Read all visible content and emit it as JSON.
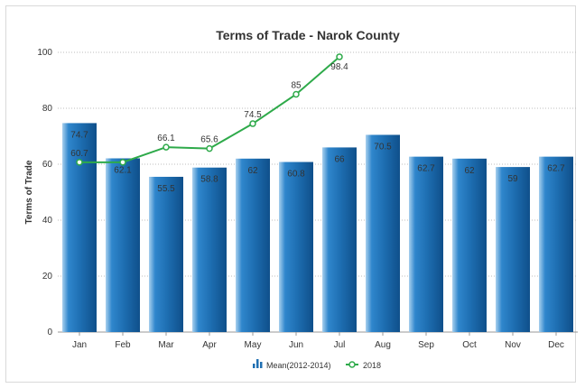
{
  "chart_data": {
    "type": "bar",
    "title": "Terms of Trade - Narok County",
    "ylabel": "Terms of Trade",
    "xlabel": "",
    "ylim": [
      0,
      100
    ],
    "yticks": [
      0,
      20,
      40,
      60,
      80,
      100
    ],
    "grid": true,
    "legend_position": "bottom-center",
    "categories": [
      "Jan",
      "Feb",
      "Mar",
      "Apr",
      "May",
      "Jun",
      "Jul",
      "Aug",
      "Sep",
      "Oct",
      "Nov",
      "Dec"
    ],
    "series": [
      {
        "name": "Mean(2012-2014)",
        "kind": "bar",
        "color": "#1f6fb2",
        "values": [
          74.7,
          62.1,
          55.5,
          58.8,
          62,
          60.8,
          66,
          70.5,
          62.7,
          62,
          59,
          62.7
        ],
        "labels": [
          "74.7",
          "62.1",
          "55.5",
          "58.8",
          "62",
          "60.8",
          "66",
          "70.5",
          "62.7",
          "62",
          "59",
          "62.7"
        ]
      },
      {
        "name": "2018",
        "kind": "line",
        "color": "#2eaa4a",
        "values": [
          60.7,
          60.7,
          66.1,
          65.6,
          74.5,
          85,
          98.4,
          null,
          null,
          null,
          null,
          null
        ],
        "labels": [
          "60.7",
          "",
          "66.1",
          "65.6",
          "74.5",
          "85",
          "98.4",
          "",
          "",
          "",
          "",
          ""
        ]
      }
    ]
  }
}
